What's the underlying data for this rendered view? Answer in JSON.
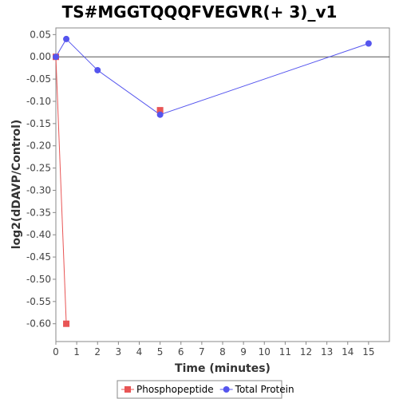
{
  "chart_data": {
    "type": "line",
    "title": "TS#MGGTQQQFVEGVR(+ 3)_v1",
    "xlabel": "Time (minutes)",
    "ylabel": "log2(dDAVP/Control)",
    "xlim": [
      0,
      16
    ],
    "ylim": [
      -0.64,
      0.065
    ],
    "x_ticks": [
      "0",
      "1",
      "2",
      "3",
      "4",
      "5",
      "6",
      "7",
      "8",
      "9",
      "10",
      "11",
      "12",
      "13",
      "14",
      "15"
    ],
    "y_ticks": [
      "0.05",
      "0.00",
      "-0.05",
      "-0.10",
      "-0.15",
      "-0.20",
      "-0.25",
      "-0.30",
      "-0.35",
      "-0.40",
      "-0.45",
      "-0.50",
      "-0.55",
      "-0.60"
    ],
    "grid": false,
    "legend_position": "bottom",
    "series": [
      {
        "name": "Phosphopeptide",
        "color": "#e85555",
        "marker": "square",
        "points": [
          {
            "x": 0,
            "y": 0.0
          },
          {
            "x": 0.5,
            "y": -0.6
          },
          {
            "x": 5,
            "y": -0.12
          }
        ],
        "connected": [
          [
            0,
            1
          ]
        ]
      },
      {
        "name": "Total Protein",
        "color": "#5555ee",
        "marker": "circle",
        "points": [
          {
            "x": 0,
            "y": 0.0
          },
          {
            "x": 0.5,
            "y": 0.04
          },
          {
            "x": 2,
            "y": -0.03
          },
          {
            "x": 5,
            "y": -0.13
          },
          {
            "x": 15,
            "y": 0.03
          }
        ],
        "connected": [
          [
            0,
            1
          ],
          [
            1,
            2
          ],
          [
            2,
            3
          ],
          [
            3,
            4
          ]
        ]
      }
    ]
  }
}
